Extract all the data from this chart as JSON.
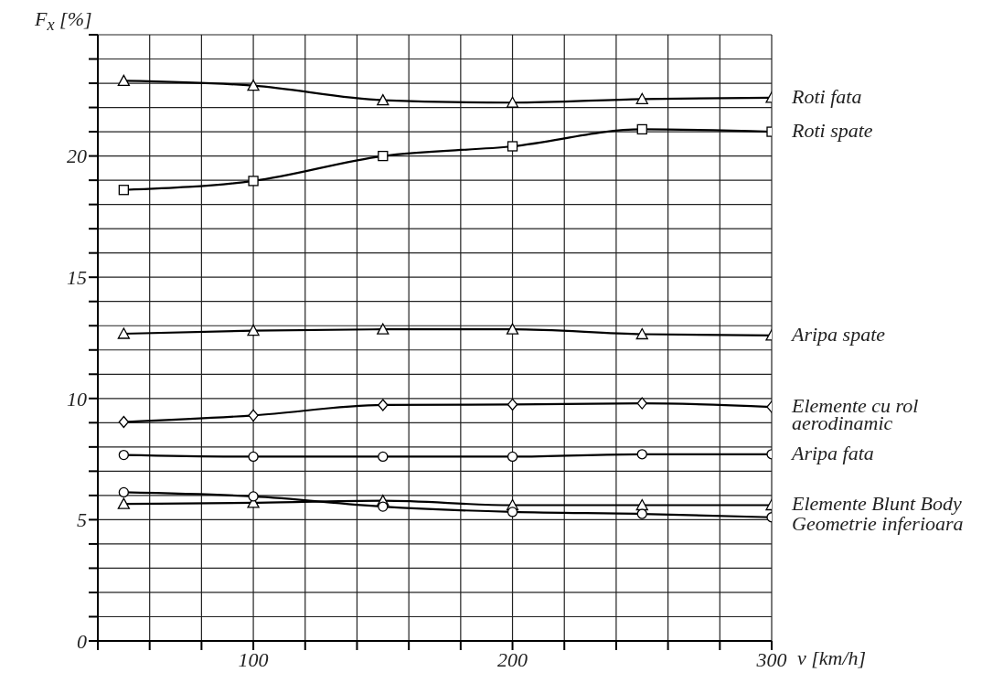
{
  "chart_data": {
    "type": "line",
    "xlabel": "v [km/h]",
    "ylabel": "F$_{x}$ [%]",
    "x": [
      50,
      100,
      150,
      200,
      250,
      300
    ],
    "xlim": [
      40,
      300
    ],
    "xticks": [
      {
        "value": 40,
        "label": null
      },
      {
        "value": 60,
        "label": null
      },
      {
        "value": 80,
        "label": null
      },
      100,
      {
        "value": 120,
        "label": null
      },
      {
        "value": 140,
        "label": null
      },
      {
        "value": 160,
        "label": null
      },
      {
        "value": 180,
        "label": null
      },
      200,
      {
        "value": 220,
        "label": null
      },
      {
        "value": 240,
        "label": null
      },
      {
        "value": 260,
        "label": null
      },
      {
        "value": 280,
        "label": null
      },
      300
    ],
    "ylim": [
      0,
      25
    ],
    "yticks": [
      0,
      {
        "value": 1,
        "label": null
      },
      {
        "value": 2,
        "label": null
      },
      {
        "value": 3,
        "label": null
      },
      {
        "value": 4,
        "label": null
      },
      5,
      {
        "value": 6,
        "label": null
      },
      {
        "value": 7,
        "label": null
      },
      {
        "value": 8,
        "label": null
      },
      {
        "value": 9,
        "label": null
      },
      10,
      {
        "value": 11,
        "label": null
      },
      {
        "value": 12,
        "label": null
      },
      {
        "value": 13,
        "label": null
      },
      {
        "value": 14,
        "label": null
      },
      15,
      {
        "value": 16,
        "label": null
      },
      {
        "value": 17,
        "label": null
      },
      {
        "value": 18,
        "label": null
      },
      {
        "value": 19,
        "label": null
      },
      20,
      {
        "value": 21,
        "label": null
      },
      {
        "value": 22,
        "label": null
      },
      {
        "value": 23,
        "label": null
      },
      {
        "value": 24,
        "label": null
      },
      {
        "value": 25,
        "label": null
      }
    ],
    "grid": true,
    "line_style": "solid",
    "series": [
      {
        "name": "Roti fata",
        "color": "#000000",
        "marker": "triangle",
        "values": [
          23.1,
          22.9,
          22.3,
          22.2,
          22.35,
          22.4
        ]
      },
      {
        "name": "Roti spate",
        "color": "#000000",
        "marker": "square",
        "values": [
          18.6,
          18.97,
          20.0,
          20.4,
          21.1,
          21.0
        ]
      },
      {
        "name": "Aripa spate",
        "color": "#000000",
        "marker": "triangle",
        "values": [
          12.67,
          12.8,
          12.85,
          12.85,
          12.65,
          12.6
        ]
      },
      {
        "name": "Elemente cu rol aerodinamic",
        "color": "#000000",
        "marker": "diamond",
        "values": [
          9.03,
          9.3,
          9.73,
          9.75,
          9.8,
          9.65
        ]
      },
      {
        "name": "Aripa fata",
        "color": "#000000",
        "marker": "circle",
        "values": [
          7.67,
          7.6,
          7.6,
          7.6,
          7.7,
          7.7
        ]
      },
      {
        "name": "Elemente Blunt Body",
        "color": "#000000",
        "marker": "triangle",
        "values": [
          5.65,
          5.7,
          5.78,
          5.6,
          5.6,
          5.6
        ]
      },
      {
        "name": "Geometrie inferioara",
        "color": "#000000",
        "marker": "circle",
        "values": [
          6.13,
          5.96,
          5.54,
          5.32,
          5.24,
          5.1
        ]
      }
    ]
  }
}
